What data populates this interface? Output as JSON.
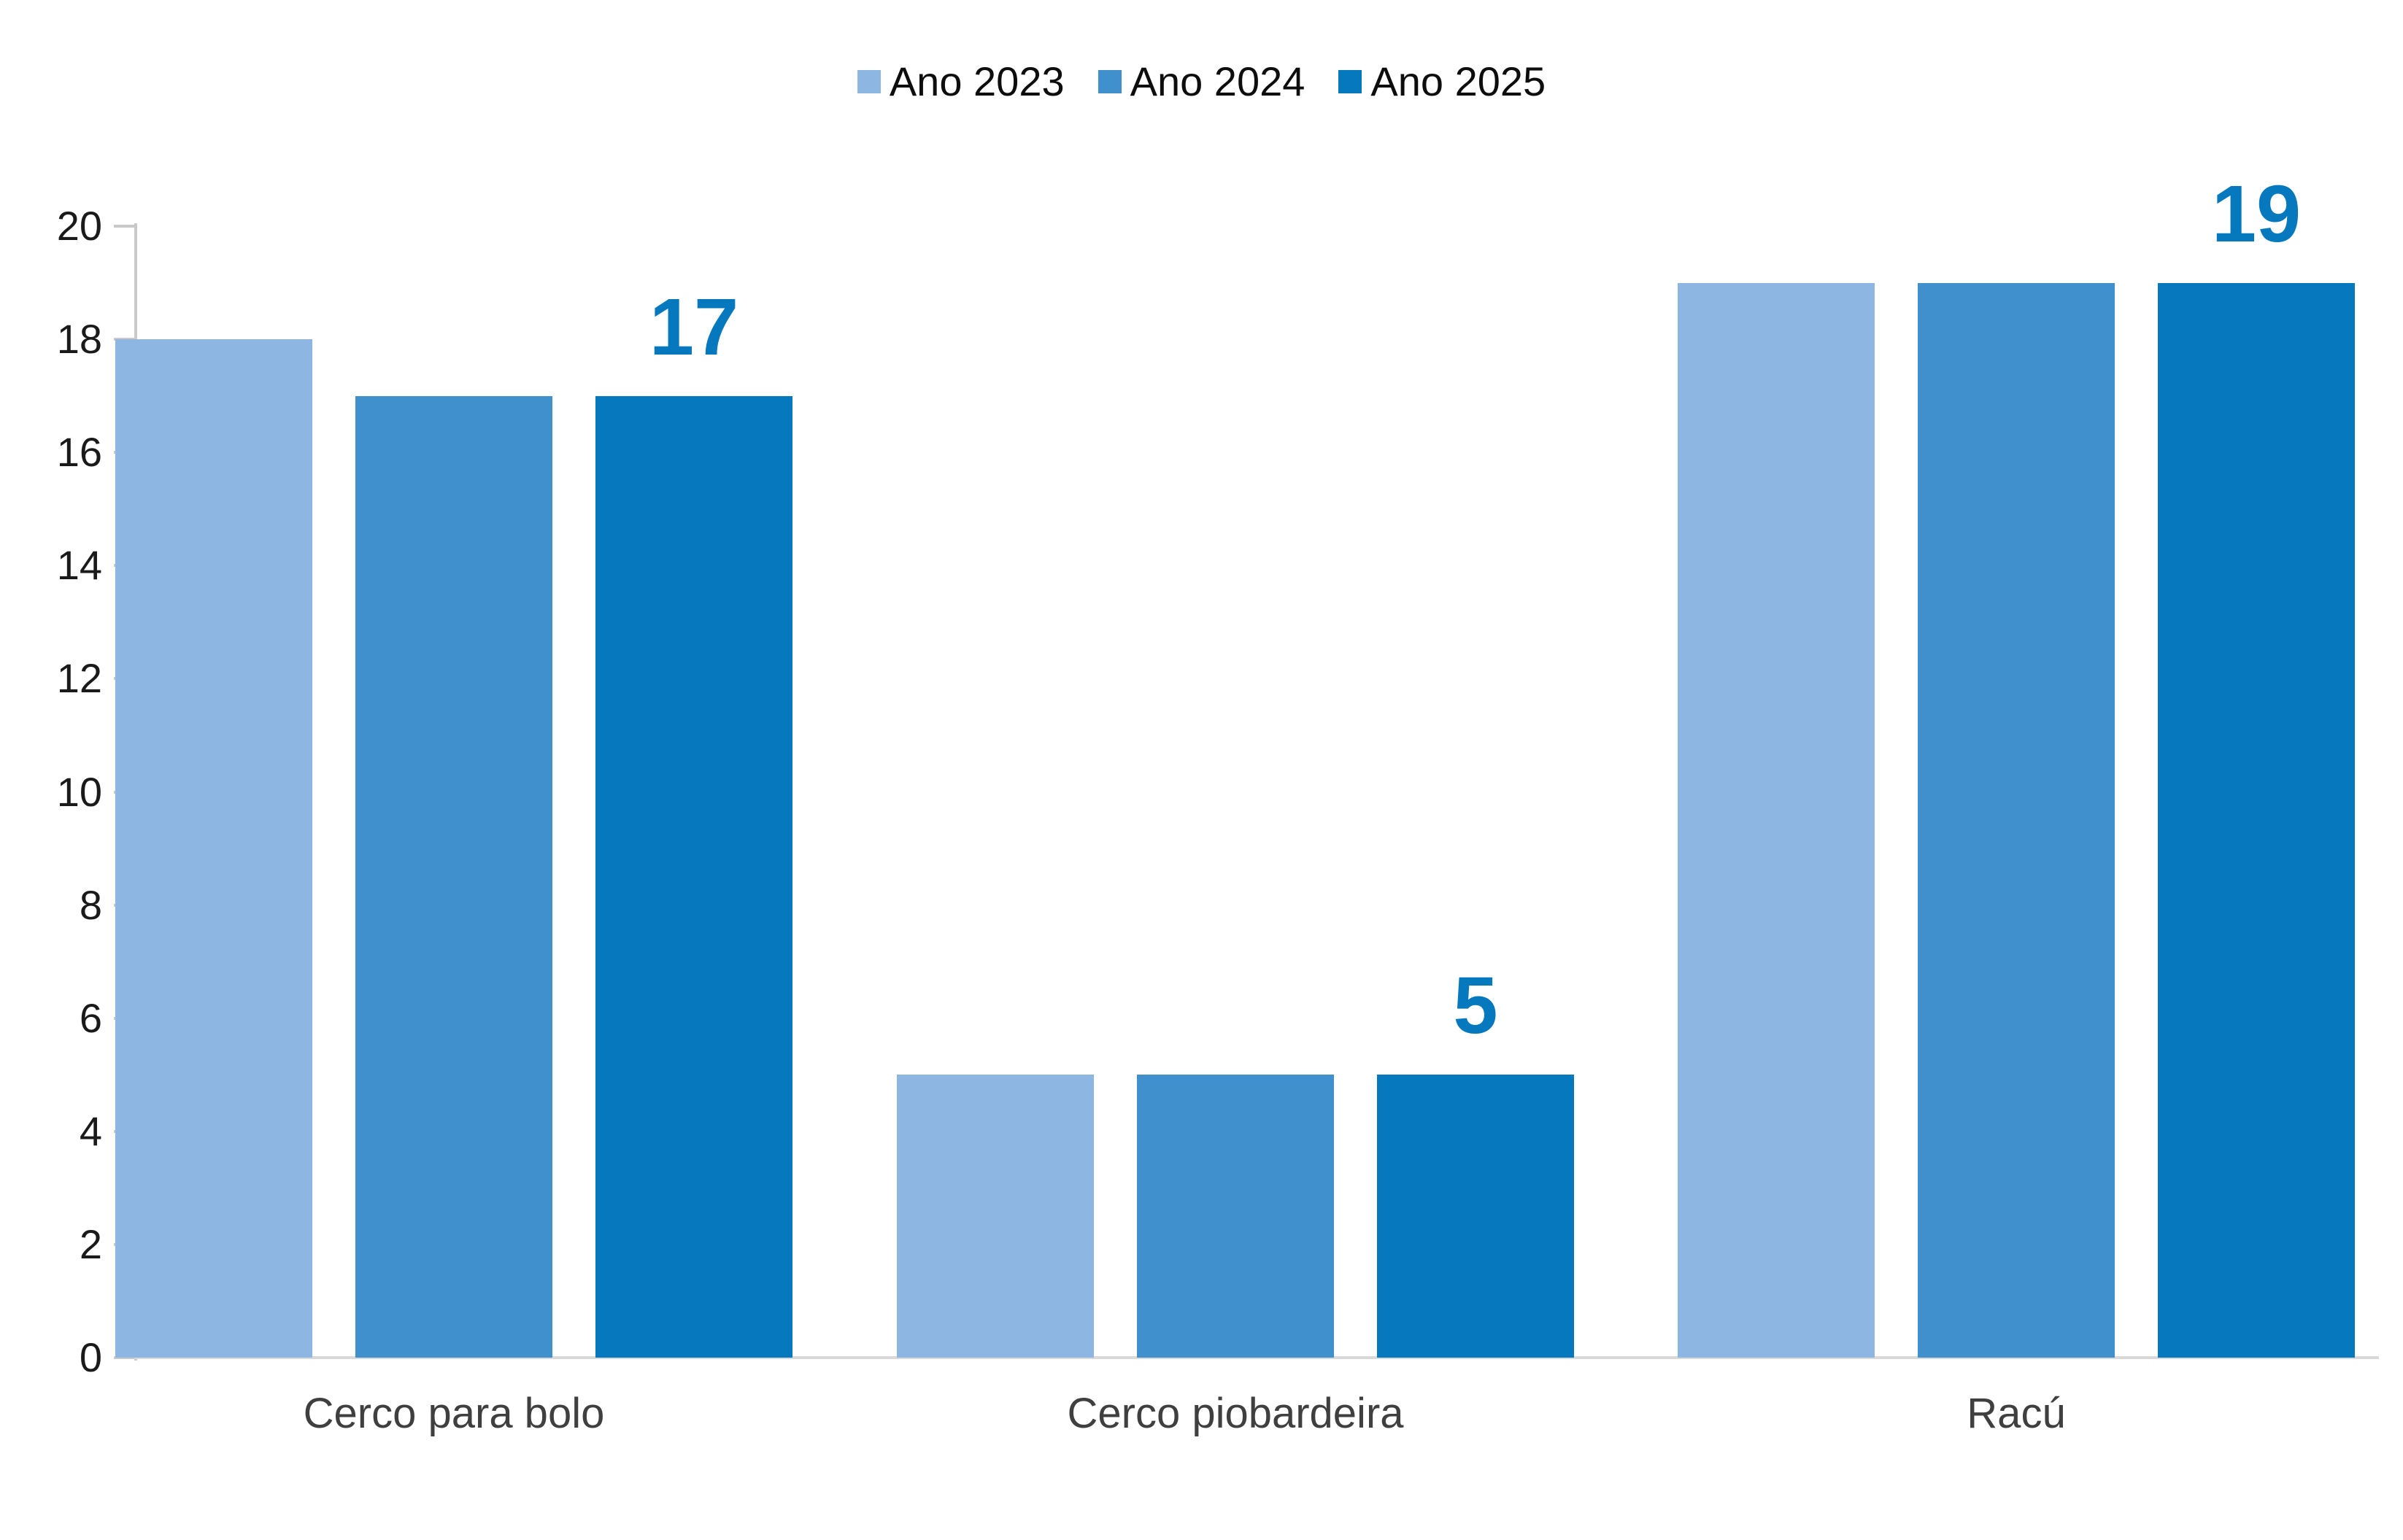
{
  "chart_data": {
    "type": "bar",
    "title": "",
    "categories": [
      "Cerco para bolo",
      "Cerco piobardeira",
      "Racú"
    ],
    "series": [
      {
        "name": "Ano 2023",
        "color": "#8DB7E2",
        "values": [
          18,
          5,
          19
        ]
      },
      {
        "name": "Ano 2024",
        "color": "#4190CE",
        "values": [
          17,
          5,
          19
        ]
      },
      {
        "name": "Ano 2025",
        "color": "#0679BE",
        "values": [
          17,
          5,
          19
        ]
      }
    ],
    "data_labels": {
      "on_series": "Ano 2025",
      "values": [
        "17",
        "5",
        "19"
      ]
    },
    "y_axis": {
      "min": 0,
      "max": 20,
      "step": 2,
      "tick_labels": [
        "0",
        "2",
        "4",
        "6",
        "8",
        "10",
        "12",
        "14",
        "16",
        "18",
        "20"
      ]
    },
    "ylim": [
      0,
      20
    ],
    "legend_position": "top",
    "grid": false
  },
  "colors": {
    "background": "#FFFFFF",
    "axis_line": "#C9C9C9",
    "baseline": "#D9D9D9",
    "tick_label_text": "#1A1A1A",
    "category_label_text": "#3F3F3F",
    "legend_text": "#0D0D0D",
    "data_label_text": "#0679BE"
  }
}
